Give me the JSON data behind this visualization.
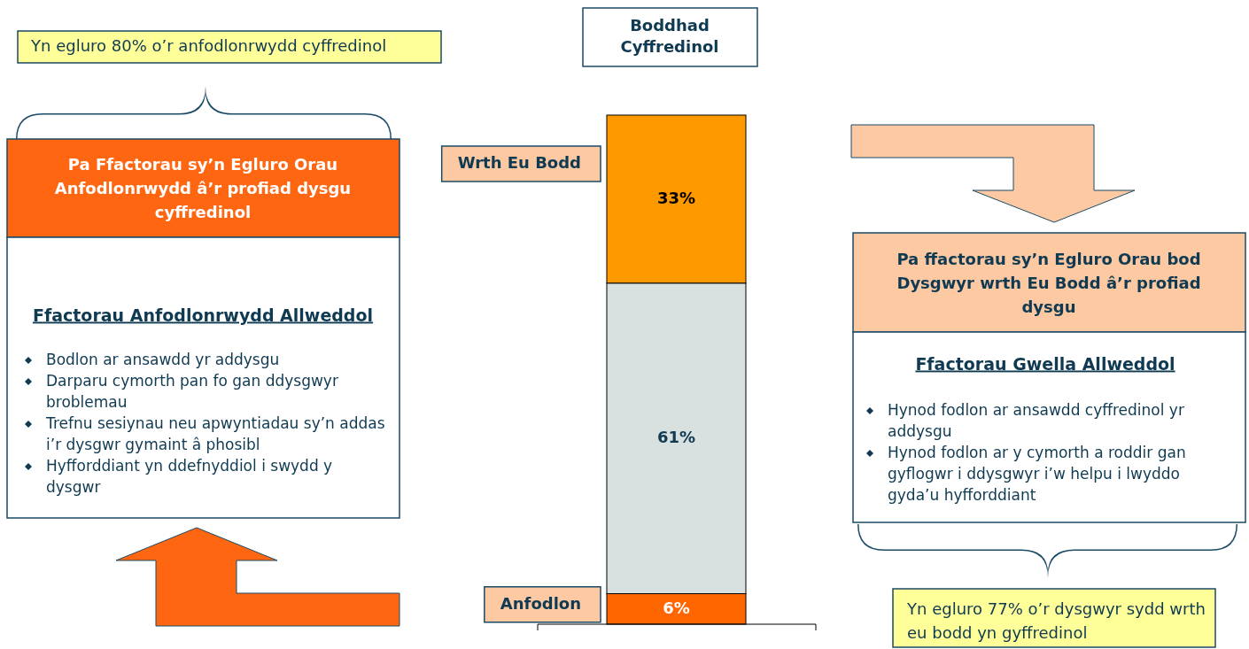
{
  "chart_data": {
    "type": "bar",
    "title": "Boddhad Cyffredinol",
    "categories": [
      null
    ],
    "stacked": true,
    "series": [
      {
        "name": "Anfodlon",
        "color": "#ff6600",
        "values": [
          6
        ],
        "value_labels": [
          "6%"
        ]
      },
      {
        "color": "#d9e0e0",
        "values": [
          61
        ],
        "value_labels": [
          "61%"
        ]
      },
      {
        "name": "Wrth Eu Bodd",
        "color": "#ff9900",
        "values": [
          33
        ],
        "value_labels": [
          "33%"
        ]
      }
    ],
    "annotations": [
      "Yn egluro 80% o’r anfodlonrwydd cyffredinol",
      "Pa Ffactorau sy’n Egluro Orau Anfodlonrwydd â’r profiad dysgu cyffredinol",
      "Ffactorau Anfodlonrwydd Allweddol",
      "Bodlon ar ansawdd yr addysgu",
      "Darparu cymorth pan fo gan ddysgwyr broblemau",
      "Trefnu sesiynau neu apwyntiadau sy’n addas i’r dysgwr gymaint â phosibl",
      "Hyfforddiant yn ddefnyddiol i swydd y dysgwr",
      "Pa ffactorau sy’n Egluro Orau bod Dysgwyr wrth Eu Bodd â’r profiad dysgu",
      "Ffactorau Gwella Allweddol",
      "Hynod fodlon ar ansawdd cyffredinol yr addysgu",
      "Hynod fodlon ar y cymorth a roddir gan gyflogwr i ddysgwyr i’w helpu i lwyddo gyda’u hyfforddiant",
      "Yn egluro 77% o’r dysgwyr sydd wrth eu bodd yn gyffredinol"
    ]
  }
}
